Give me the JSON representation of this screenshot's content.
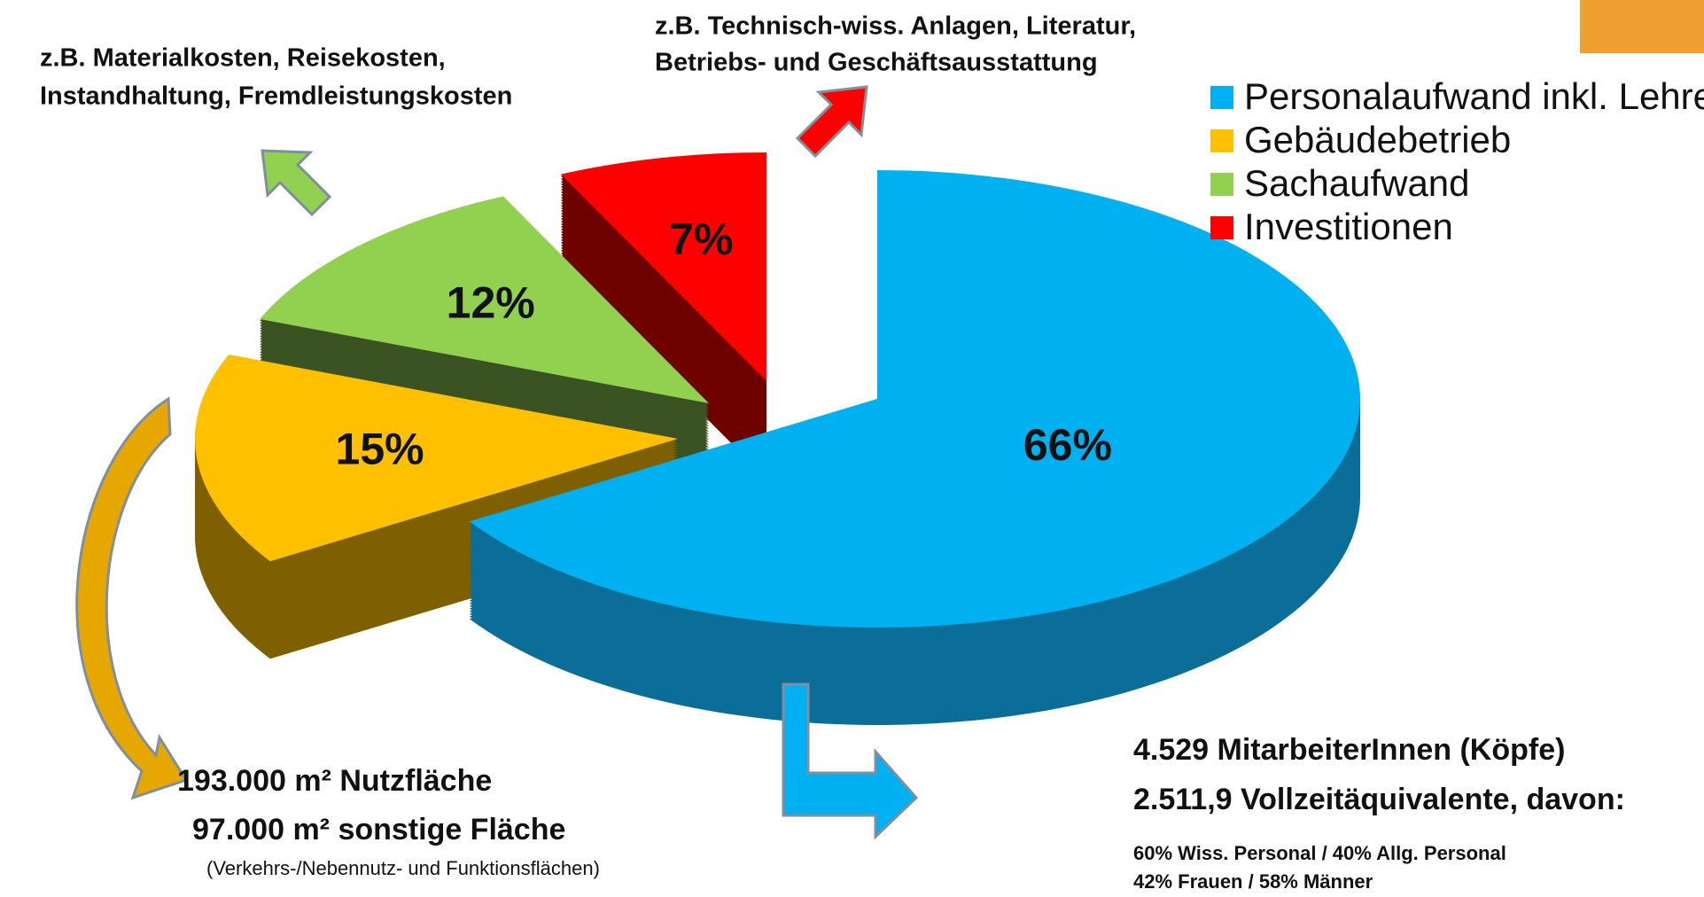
{
  "chart_data": {
    "type": "pie",
    "categories": [
      "Personalaufwand inkl. Lehre",
      "Gebäudebetrieb",
      "Sachaufwand",
      "Investitionen"
    ],
    "values": [
      66,
      15,
      12,
      7
    ],
    "value_labels": [
      "66%",
      "15%",
      "12%",
      "7%"
    ],
    "colors": [
      "#00b0f0",
      "#ffc000",
      "#92d050",
      "#ff0000"
    ],
    "side_colors": [
      "#0a6e98",
      "#7f6000",
      "#3b5222",
      "#6e0000"
    ],
    "legend": "top-right",
    "annotations": {
      "sachaufwand": [
        "z.B. Materialkosten, Reisekosten,",
        "Instandhaltung, Fremdleistungskosten"
      ],
      "investitionen": [
        "z.B. Technisch-wiss. Anlagen, Literatur,",
        "Betriebs- und Geschäftsausstattung"
      ],
      "gebaeude": [
        "193.000 m² Nutzfläche",
        "97.000 m² sonstige Fläche",
        "(Verkehrs-/Nebennutz- und Funktionsflächen)"
      ],
      "personal": [
        "4.529 MitarbeiterInnen (Köpfe)",
        "2.511,9 Vollzeitäquivalente, davon:",
        "60% Wiss. Personal / 40% Allg. Personal",
        "42% Frauen / 58% Männer"
      ]
    }
  }
}
